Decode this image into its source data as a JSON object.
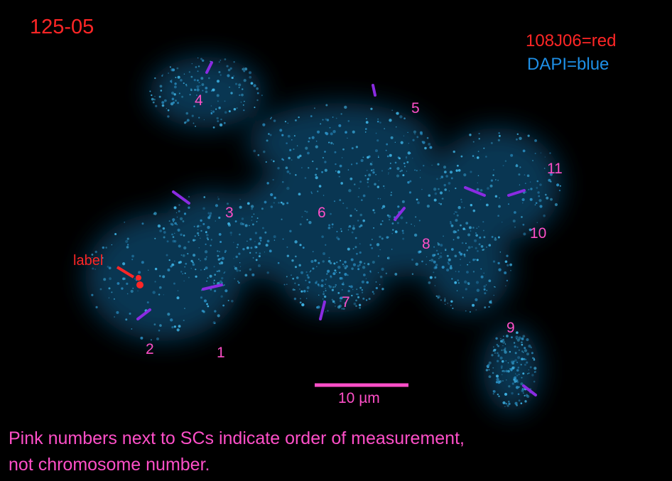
{
  "title": "125-05",
  "legend": {
    "probe": "108J06=red",
    "stain": "DAPI=blue"
  },
  "colors": {
    "probe": "#ff2626",
    "stain": "#1e8fe6",
    "order_numbers": "#ff4fc8",
    "sc_ends": "#8a2be2"
  },
  "arrow_label": "label",
  "sc_numbers": [
    "1",
    "2",
    "3",
    "4",
    "5",
    "6",
    "7",
    "8",
    "9",
    "10",
    "11"
  ],
  "scale_bar": {
    "label": "10 µm"
  },
  "note": {
    "line1": "Pink numbers next to SCs indicate order of measurement,",
    "line2": "not chromosome number."
  }
}
